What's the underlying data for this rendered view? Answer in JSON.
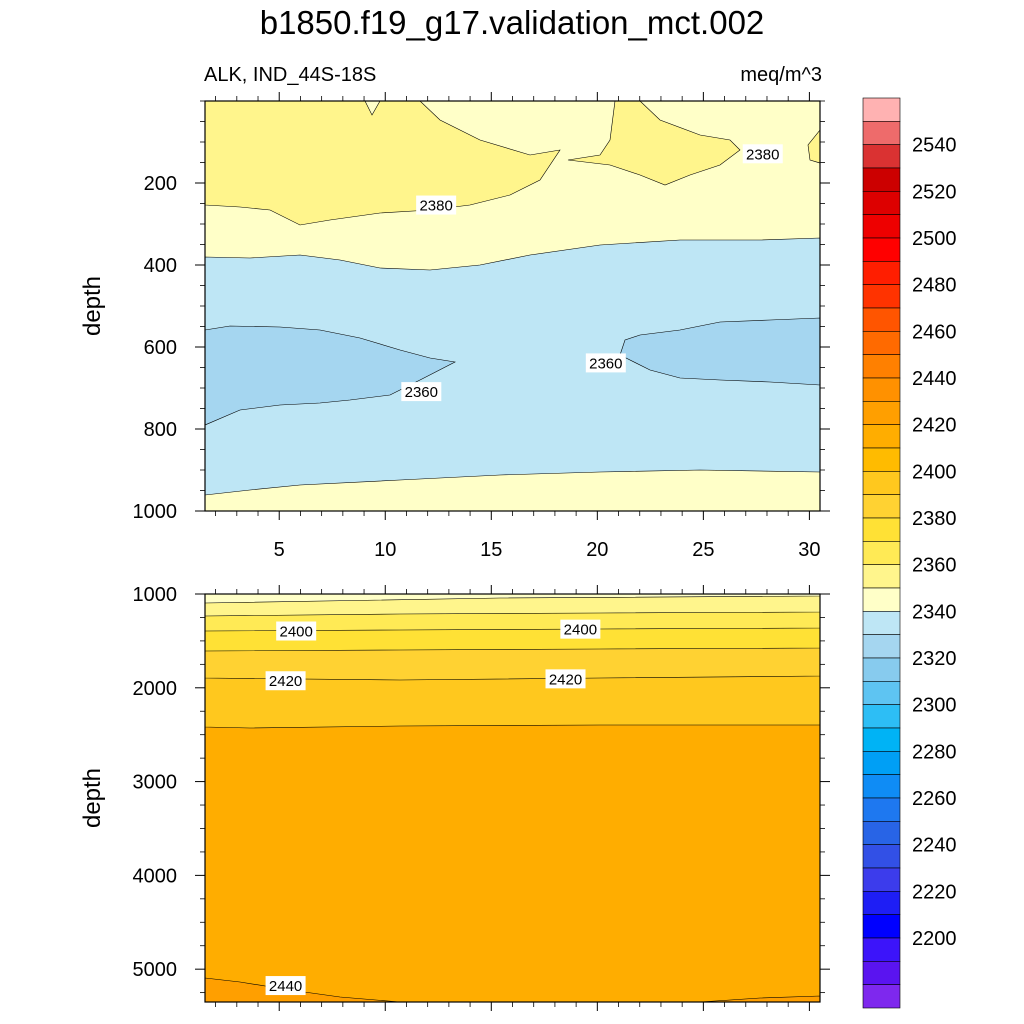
{
  "header": {
    "title": "b1850.f19_g17.validation_mct.002",
    "left_label": "ALK, IND_44S-18S",
    "right_label": "meq/m^3"
  },
  "chart_data": [
    {
      "type": "heatmap",
      "panel": "upper",
      "ylabel": "depth",
      "xlim": [
        1.5,
        30.5
      ],
      "ylim": [
        1000,
        0
      ],
      "x_ticks": [
        5,
        10,
        15,
        20,
        25,
        30
      ],
      "y_ticks": [
        200,
        400,
        600,
        800,
        1000
      ],
      "contour_labels": [
        {
          "text": "2380",
          "x": 12.4,
          "y": 255
        },
        {
          "text": "2380",
          "x": 27.8,
          "y": 130
        },
        {
          "text": "2360",
          "x": 11.7,
          "y": 710
        },
        {
          "text": "2360",
          "x": 20.4,
          "y": 640
        }
      ],
      "regions": [
        {
          "level": "2380-2390",
          "x": [
            1.5,
            30.5
          ],
          "depth": [
            20,
            960
          ]
        },
        {
          "level": "2390-2400",
          "x": [
            1.5,
            30.5
          ],
          "depth": [
            20,
            290
          ],
          "note": "upper-left band"
        },
        {
          "level": "2360-2370",
          "x": [
            1.5,
            30.5
          ],
          "depth": [
            340,
            960
          ]
        },
        {
          "level": "2350-2360",
          "x": [
            1.5,
            13.5
          ],
          "depth": [
            550,
            780
          ]
        },
        {
          "level": "2350-2360",
          "x": [
            21.5,
            30.5
          ],
          "depth": [
            530,
            690
          ]
        }
      ]
    },
    {
      "type": "heatmap",
      "panel": "lower",
      "ylabel": "depth",
      "xlim": [
        1.5,
        30.5
      ],
      "ylim": [
        5350,
        1000
      ],
      "y_ticks": [
        1000,
        2000,
        3000,
        4000,
        5000
      ],
      "contour_labels": [
        {
          "text": "2400",
          "x": 5.8,
          "y": 1400
        },
        {
          "text": "2400",
          "x": 19.2,
          "y": 1380
        },
        {
          "text": "2420",
          "x": 5.3,
          "y": 1930
        },
        {
          "text": "2420",
          "x": 18.5,
          "y": 1910
        },
        {
          "text": "2440",
          "x": 5.3,
          "y": 5180
        }
      ]
    }
  ],
  "colorbar": {
    "labels": [
      "2540",
      "2520",
      "2500",
      "2480",
      "2460",
      "2440",
      "2420",
      "2400",
      "2380",
      "2360",
      "2340",
      "2320",
      "2300",
      "2280",
      "2260",
      "2240",
      "2220",
      "2200"
    ],
    "colors": [
      "#FFB2B2",
      "#EE6B6B",
      "#DA3232",
      "#CC0000",
      "#DD0000",
      "#EE0000",
      "#FF0000",
      "#FF1E00",
      "#FF3300",
      "#FF5500",
      "#FF6A00",
      "#FF8000",
      "#FF9100",
      "#FF9F00",
      "#FFAD00",
      "#FFBB00",
      "#FFC81E",
      "#FFD232",
      "#FFE135",
      "#FFEA55",
      "#FFF58C",
      "#FFFFC8",
      "#BEE6F5",
      "#A5D6F0",
      "#87CBEE",
      "#5EC4F2",
      "#2DBEF5",
      "#00B3F5",
      "#009FF5",
      "#0F8CF5",
      "#1E78F0",
      "#2864E6",
      "#3250E6",
      "#3C3CEC",
      "#1E1EF5",
      "#0000FF",
      "#3C14FA",
      "#5A14F0",
      "#7E28EE"
    ]
  }
}
